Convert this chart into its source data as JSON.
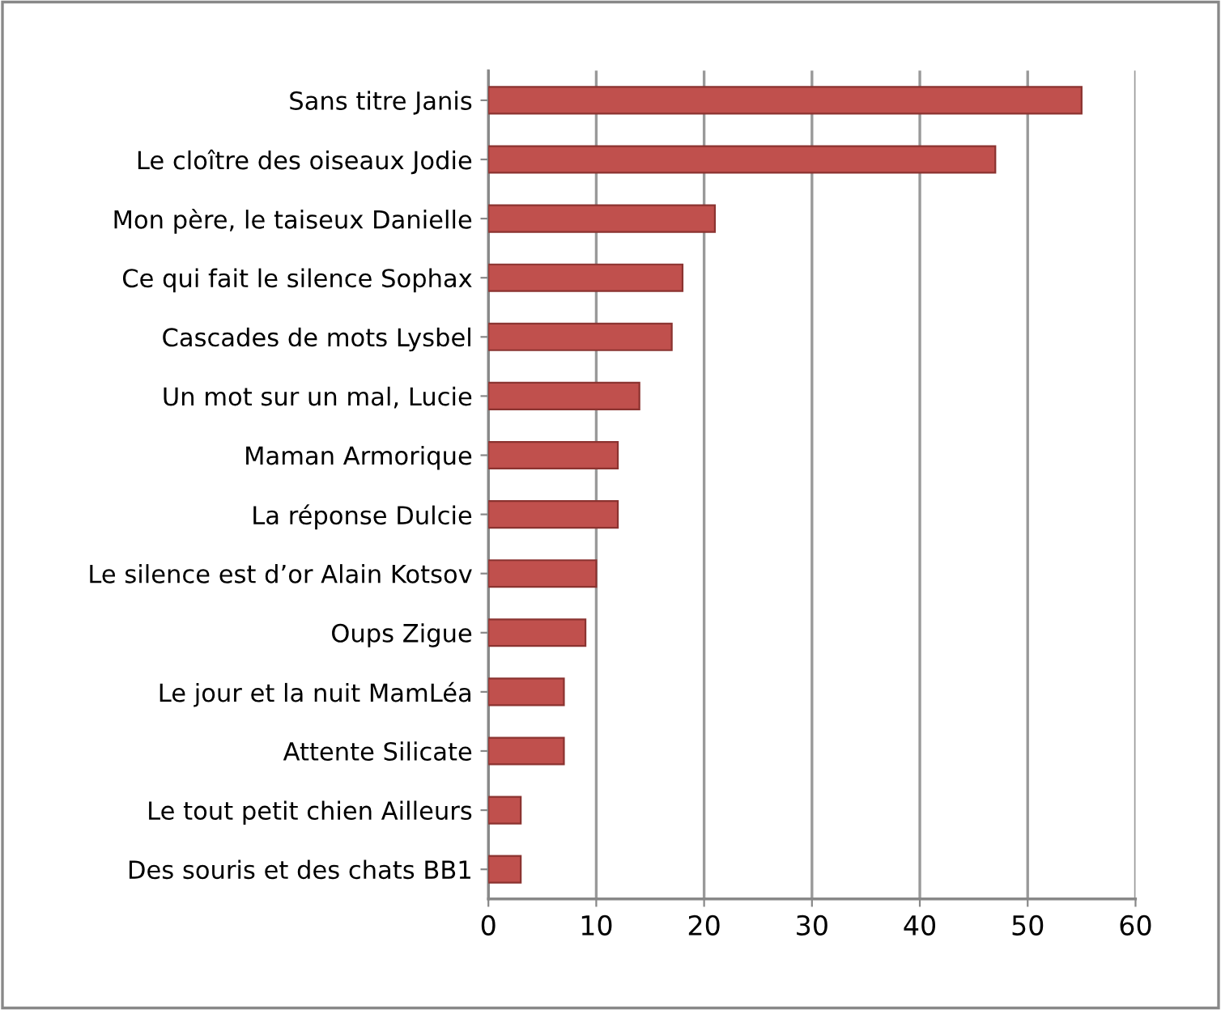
{
  "chart_data": {
    "type": "bar",
    "orientation": "horizontal",
    "categories": [
      "Sans titre Janis",
      "Le cloître des oiseaux Jodie",
      "Mon père, le taiseux Danielle",
      "Ce qui fait le silence Sophax",
      "Cascades de mots Lysbel",
      "Un mot sur un mal, Lucie",
      "Maman Armorique",
      "La réponse Dulcie",
      "Le silence est d’or Alain Kotsov",
      "Oups Zigue",
      "Le jour et la nuit MamLéa",
      "Attente Silicate",
      "Le tout petit chien Ailleurs",
      "Des souris et des chats BB1"
    ],
    "values": [
      55,
      47,
      21,
      18,
      17,
      14,
      12,
      12,
      10,
      9,
      7,
      7,
      3,
      3
    ],
    "color": "#c0504d",
    "xlim": [
      0,
      60
    ],
    "xticks": [
      0,
      10,
      20,
      30,
      40,
      50,
      60
    ],
    "grid": "x",
    "legend": false
  }
}
